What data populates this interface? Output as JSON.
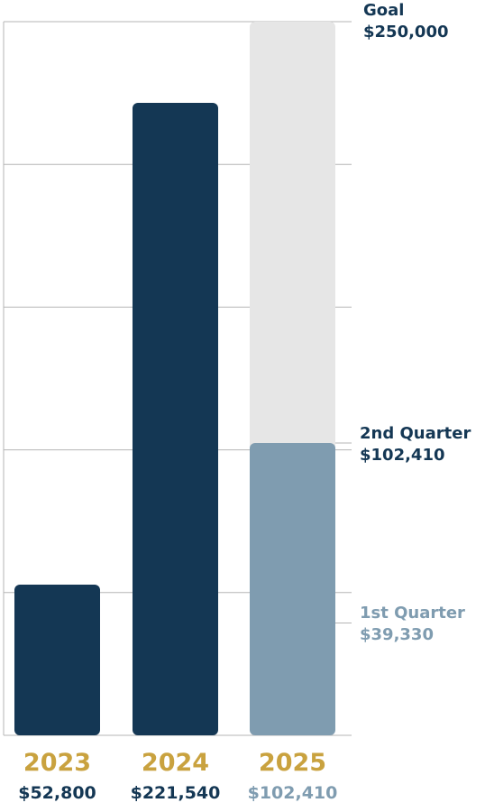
{
  "colors": {
    "dark_navy": "#143754",
    "steel_blue": "#7f9cb0",
    "goal_gray": "#e6e6e6",
    "gold": "#c9a23f",
    "grid": "#b5b5b5"
  },
  "chart_data": {
    "type": "bar",
    "categories": [
      "2023",
      "2024",
      "2025"
    ],
    "values": [
      52800,
      221540,
      102410
    ],
    "value_labels": [
      "$52,800",
      "$221,540",
      "$102,410"
    ],
    "ylim": [
      0,
      250000
    ],
    "grid": true,
    "goal": {
      "label": "Goal",
      "value": 250000,
      "value_label": "$250,000"
    },
    "annotations": [
      {
        "label": "2nd Quarter",
        "value": 102410,
        "value_label": "$102,410"
      },
      {
        "label": "1st Quarter",
        "value": 39330,
        "value_label": "$39,330"
      }
    ]
  }
}
